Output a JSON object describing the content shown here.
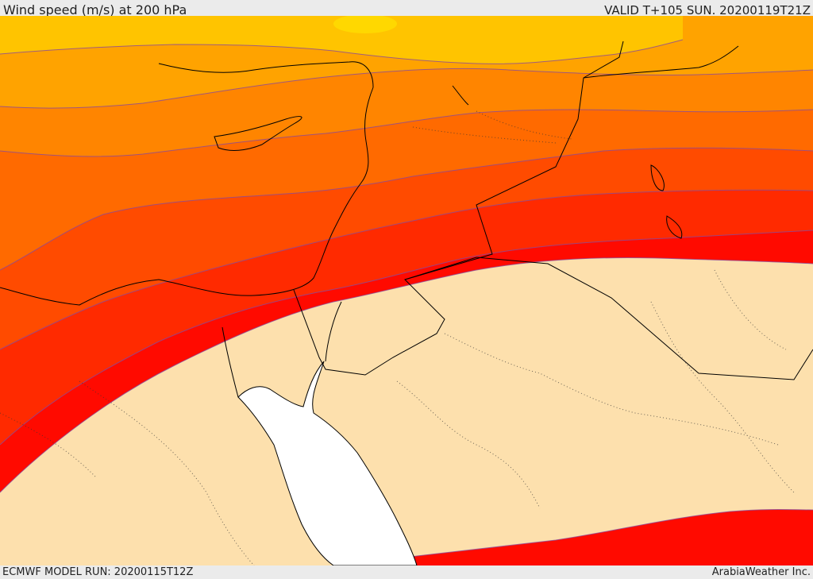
{
  "header": {
    "title": "Wind speed (m/s) at 200 hPa",
    "valid": "VALID T+105 SUN. 20200119T21Z"
  },
  "footer": {
    "model_run": "ECMWF MODEL RUN: 20200115T12Z",
    "credit": "ArabiaWeather Inc."
  },
  "map": {
    "palette": {
      "band_1": "#ffc400",
      "band_2": "#ffa300",
      "band_3": "#ff8500",
      "band_4": "#ff6a00",
      "band_5": "#ff4b00",
      "band_6": "#ff2a00",
      "band_7": "#ff0a00",
      "low": "#fde0ad",
      "sea": "#ffffff",
      "contour": "#7a3aa8",
      "coast": "#000000"
    }
  }
}
